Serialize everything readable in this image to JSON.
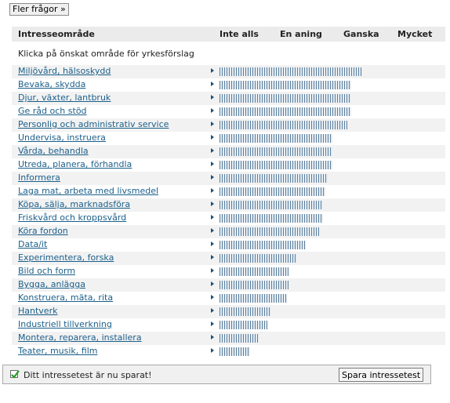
{
  "top": {
    "more_questions_label": "Fler frågor »"
  },
  "header": {
    "area": "Intresseområde",
    "not_at_all": "Inte alls",
    "a_little": "En aning",
    "quite": "Ganska",
    "very": "Mycket"
  },
  "instruction": "Klicka på önskat område för yrkesförslag",
  "colors": {
    "link": "#1b5f8a",
    "bar": "#5d7f9c",
    "row_alt": "#f2f2f2",
    "header_bg": "#ebebeb"
  },
  "areas": [
    {
      "label": "Miljövård, hälsoskydd",
      "level": 0.66
    },
    {
      "label": "Bevaka, skydda",
      "level": 0.61
    },
    {
      "label": "Djur, växter, lantbruk",
      "level": 0.61
    },
    {
      "label": "Ge råd och stöd",
      "level": 0.61
    },
    {
      "label": "Personlig och administrativ service",
      "level": 0.59
    },
    {
      "label": "Undervisa, instruera",
      "level": 0.52
    },
    {
      "label": "Vårda, behandla",
      "level": 0.52
    },
    {
      "label": "Utreda, planera, förhandla",
      "level": 0.52
    },
    {
      "label": "Informera",
      "level": 0.5
    },
    {
      "label": "Laga mat, arbeta med livsmedel",
      "level": 0.49
    },
    {
      "label": "Köpa, sälja, marknadsföra",
      "level": 0.48
    },
    {
      "label": "Friskvård och kroppsvård",
      "level": 0.48
    },
    {
      "label": "Köra fordon",
      "level": 0.46
    },
    {
      "label": "Data/it",
      "level": 0.4
    },
    {
      "label": "Experimentera, forska",
      "level": 0.36
    },
    {
      "label": "Bild och form",
      "level": 0.32
    },
    {
      "label": "Bygga, anlägga",
      "level": 0.32
    },
    {
      "label": "Konstruera, mäta, rita",
      "level": 0.31
    },
    {
      "label": "Hantverk",
      "level": 0.24
    },
    {
      "label": "Industriell tillverkning",
      "level": 0.22
    },
    {
      "label": "Montera, reparera, installera",
      "level": 0.18
    },
    {
      "label": "Teater, musik, film",
      "level": 0.14
    }
  ],
  "footer": {
    "saved_message": "Ditt intressetest är nu sparat!",
    "save_button": "Spara intressetest"
  }
}
